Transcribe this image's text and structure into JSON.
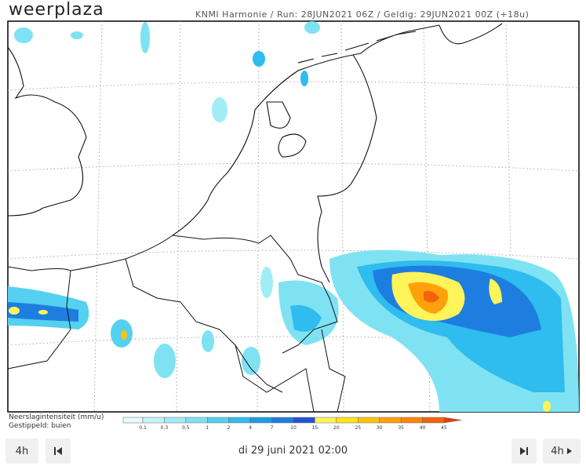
{
  "header": {
    "logo": "weerplaza",
    "run_info": "KNMI Harmonie / Run: 28JUN2021 06Z / Geldig: 29JUN2021 00Z (+18u)"
  },
  "legend": {
    "title": "Neerslagintensiteit (mm/u)",
    "subtitle": "Gestippeld: buien",
    "labels": [
      "0.1",
      "0.3",
      "0.5",
      "1",
      "2",
      "4",
      "7",
      "10",
      "15",
      "20",
      "25",
      "30",
      "35",
      "40",
      "45"
    ],
    "colors": [
      "#e6fbfd",
      "#c4f4f9",
      "#a2ecf6",
      "#7fe2f3",
      "#55d0f1",
      "#2fbcee",
      "#1c9de6",
      "#1d7ee0",
      "#2352d6",
      "#fff45a",
      "#ffe31a",
      "#ffc20e",
      "#ffa10a",
      "#ff820a",
      "#f5620a",
      "#e4400a"
    ]
  },
  "controls": {
    "step_back": "4h",
    "date": "di 29 juni 2021 02:00",
    "step_forward": "4h"
  }
}
